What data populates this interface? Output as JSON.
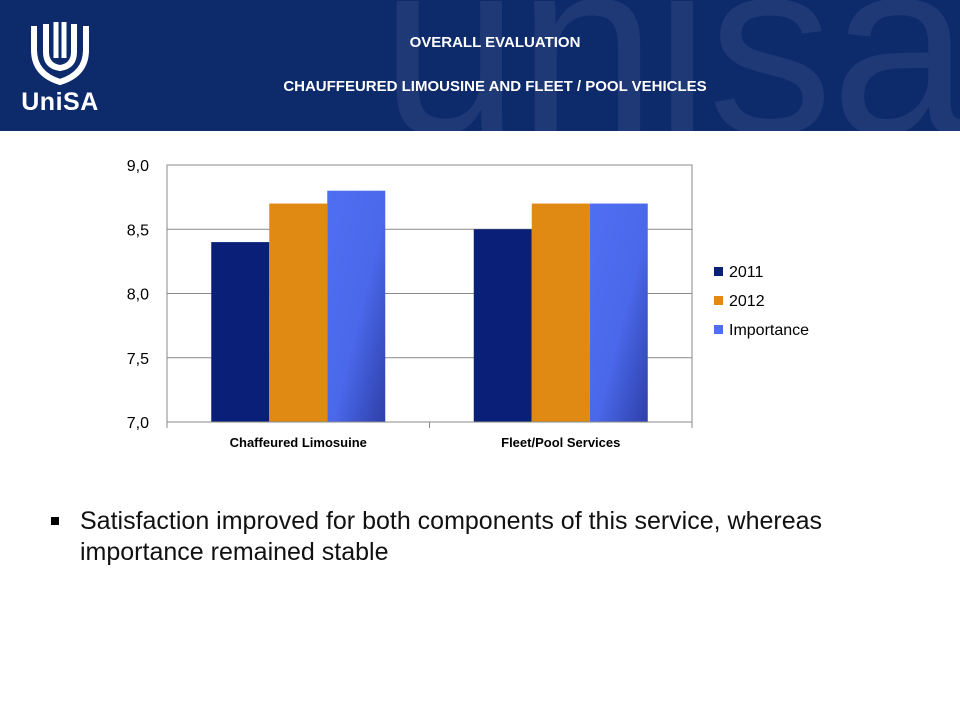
{
  "header": {
    "title": "OVERALL EVALUATION",
    "subtitle": "CHAUFFEURED LIMOUSINE AND FLEET / POOL VEHICLES",
    "logo_text": "UniSA",
    "watermark": "unisa",
    "background_color": "#0d2a6b"
  },
  "chart_data": {
    "type": "bar",
    "categories": [
      "Chaffeured Limosuine",
      "Fleet/Pool Services"
    ],
    "series": [
      {
        "name": "2011",
        "values": [
          8.4,
          8.5
        ],
        "color": "#0a1f78"
      },
      {
        "name": "2012",
        "values": [
          8.7,
          8.7
        ],
        "color": "#e08a14"
      },
      {
        "name": "Importance",
        "values": [
          8.8,
          8.7
        ],
        "color": "#4f6ff2"
      }
    ],
    "yticks": [
      "7,0",
      "7,5",
      "8,0",
      "8,5",
      "9,0"
    ],
    "ylim": [
      7.0,
      9.0
    ],
    "grid": true,
    "legend": "right"
  },
  "bullets": [
    "Satisfaction improved for both components of this service, whereas importance remained stable"
  ]
}
